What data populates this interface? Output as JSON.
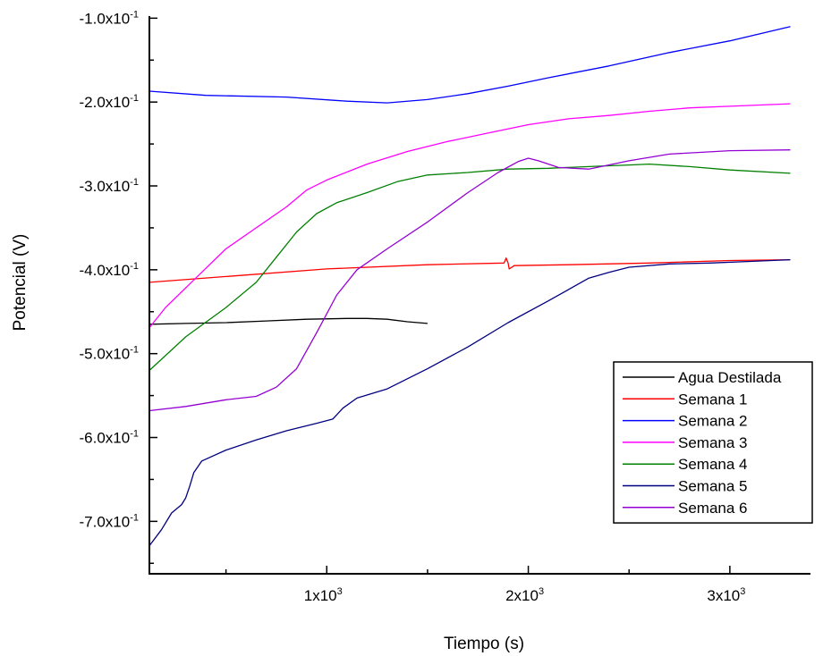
{
  "chart_data": {
    "type": "line",
    "xlabel": "Tiempo (s)",
    "ylabel": "Potencial (V)",
    "xlim": [
      120,
      3400
    ],
    "ylim": [
      -0.7625,
      -0.0975
    ],
    "x_ticks": [
      {
        "value": 1000,
        "mantissa": "1x10",
        "exp": "3"
      },
      {
        "value": 2000,
        "mantissa": "2x10",
        "exp": "3"
      },
      {
        "value": 3000,
        "mantissa": "3x10",
        "exp": "3"
      }
    ],
    "x_minor_ticks": [
      500,
      1500,
      2500
    ],
    "y_ticks": [
      {
        "value": -0.1,
        "mantissa": "-1.0x10",
        "exp": "-1"
      },
      {
        "value": -0.2,
        "mantissa": "-2.0x10",
        "exp": "-1"
      },
      {
        "value": -0.3,
        "mantissa": "-3.0x10",
        "exp": "-1"
      },
      {
        "value": -0.4,
        "mantissa": "-4.0x10",
        "exp": "-1"
      },
      {
        "value": -0.5,
        "mantissa": "-5.0x10",
        "exp": "-1"
      },
      {
        "value": -0.6,
        "mantissa": "-6.0x10",
        "exp": "-1"
      },
      {
        "value": -0.7,
        "mantissa": "-7.0x10",
        "exp": "-1"
      }
    ],
    "y_minor_ticks": [
      -0.15,
      -0.25,
      -0.35,
      -0.45,
      -0.55,
      -0.65,
      -0.75
    ],
    "grid": false,
    "legend_position": "bottom-right",
    "series": [
      {
        "name": "Agua Destilada",
        "color": "#000000",
        "points": [
          [
            120,
            -0.465
          ],
          [
            300,
            -0.464
          ],
          [
            500,
            -0.463
          ],
          [
            700,
            -0.461
          ],
          [
            900,
            -0.459
          ],
          [
            1100,
            -0.458
          ],
          [
            1200,
            -0.458
          ],
          [
            1300,
            -0.459
          ],
          [
            1400,
            -0.462
          ],
          [
            1500,
            -0.464
          ]
        ]
      },
      {
        "name": "Semana 1",
        "color": "#ff0000",
        "points": [
          [
            120,
            -0.415
          ],
          [
            500,
            -0.408
          ],
          [
            1000,
            -0.399
          ],
          [
            1500,
            -0.394
          ],
          [
            1880,
            -0.392
          ],
          [
            1890,
            -0.386
          ],
          [
            1900,
            -0.392
          ],
          [
            1905,
            -0.399
          ],
          [
            1930,
            -0.395
          ],
          [
            2200,
            -0.394
          ],
          [
            2600,
            -0.392
          ],
          [
            3000,
            -0.389
          ],
          [
            3300,
            -0.388
          ]
        ]
      },
      {
        "name": "Semana 2",
        "color": "#0000ff",
        "points": [
          [
            120,
            -0.187
          ],
          [
            400,
            -0.192
          ],
          [
            800,
            -0.194
          ],
          [
            1100,
            -0.199
          ],
          [
            1300,
            -0.201
          ],
          [
            1500,
            -0.197
          ],
          [
            1700,
            -0.19
          ],
          [
            1900,
            -0.181
          ],
          [
            2100,
            -0.171
          ],
          [
            2400,
            -0.157
          ],
          [
            2700,
            -0.141
          ],
          [
            3000,
            -0.127
          ],
          [
            3300,
            -0.11
          ]
        ]
      },
      {
        "name": "Semana 3",
        "color": "#ff00ff",
        "points": [
          [
            120,
            -0.469
          ],
          [
            200,
            -0.445
          ],
          [
            350,
            -0.41
          ],
          [
            500,
            -0.375
          ],
          [
            650,
            -0.35
          ],
          [
            800,
            -0.325
          ],
          [
            900,
            -0.305
          ],
          [
            1000,
            -0.293
          ],
          [
            1200,
            -0.274
          ],
          [
            1400,
            -0.259
          ],
          [
            1600,
            -0.247
          ],
          [
            1800,
            -0.237
          ],
          [
            2000,
            -0.227
          ],
          [
            2200,
            -0.22
          ],
          [
            2400,
            -0.216
          ],
          [
            2600,
            -0.211
          ],
          [
            2800,
            -0.207
          ],
          [
            3000,
            -0.205
          ],
          [
            3300,
            -0.202
          ]
        ]
      },
      {
        "name": "Semana 4",
        "color": "#008000",
        "points": [
          [
            120,
            -0.52
          ],
          [
            300,
            -0.48
          ],
          [
            500,
            -0.445
          ],
          [
            650,
            -0.415
          ],
          [
            750,
            -0.385
          ],
          [
            850,
            -0.355
          ],
          [
            950,
            -0.333
          ],
          [
            1050,
            -0.32
          ],
          [
            1200,
            -0.308
          ],
          [
            1350,
            -0.295
          ],
          [
            1500,
            -0.287
          ],
          [
            1700,
            -0.284
          ],
          [
            1900,
            -0.28
          ],
          [
            2100,
            -0.279
          ],
          [
            2300,
            -0.277
          ],
          [
            2500,
            -0.275
          ],
          [
            2600,
            -0.274
          ],
          [
            2800,
            -0.277
          ],
          [
            3000,
            -0.281
          ],
          [
            3300,
            -0.285
          ]
        ]
      },
      {
        "name": "Semana 5",
        "color": "#000080",
        "points": [
          [
            120,
            -0.729
          ],
          [
            180,
            -0.71
          ],
          [
            230,
            -0.69
          ],
          [
            280,
            -0.68
          ],
          [
            300,
            -0.672
          ],
          [
            320,
            -0.658
          ],
          [
            340,
            -0.642
          ],
          [
            380,
            -0.628
          ],
          [
            500,
            -0.615
          ],
          [
            650,
            -0.603
          ],
          [
            800,
            -0.592
          ],
          [
            950,
            -0.583
          ],
          [
            1030,
            -0.578
          ],
          [
            1080,
            -0.565
          ],
          [
            1150,
            -0.553
          ],
          [
            1300,
            -0.542
          ],
          [
            1500,
            -0.518
          ],
          [
            1700,
            -0.492
          ],
          [
            1900,
            -0.463
          ],
          [
            2100,
            -0.437
          ],
          [
            2300,
            -0.41
          ],
          [
            2400,
            -0.403
          ],
          [
            2500,
            -0.397
          ],
          [
            2700,
            -0.393
          ],
          [
            2900,
            -0.392
          ],
          [
            3100,
            -0.39
          ],
          [
            3300,
            -0.388
          ]
        ]
      },
      {
        "name": "Semana 6",
        "color": "#9400d3",
        "points": [
          [
            120,
            -0.568
          ],
          [
            300,
            -0.563
          ],
          [
            500,
            -0.555
          ],
          [
            650,
            -0.551
          ],
          [
            750,
            -0.54
          ],
          [
            850,
            -0.518
          ],
          [
            950,
            -0.475
          ],
          [
            1050,
            -0.43
          ],
          [
            1150,
            -0.4
          ],
          [
            1300,
            -0.375
          ],
          [
            1500,
            -0.343
          ],
          [
            1700,
            -0.308
          ],
          [
            1850,
            -0.284
          ],
          [
            1950,
            -0.271
          ],
          [
            2000,
            -0.267
          ],
          [
            2050,
            -0.27
          ],
          [
            2150,
            -0.278
          ],
          [
            2300,
            -0.28
          ],
          [
            2500,
            -0.27
          ],
          [
            2700,
            -0.262
          ],
          [
            3000,
            -0.258
          ],
          [
            3300,
            -0.257
          ]
        ]
      }
    ]
  }
}
